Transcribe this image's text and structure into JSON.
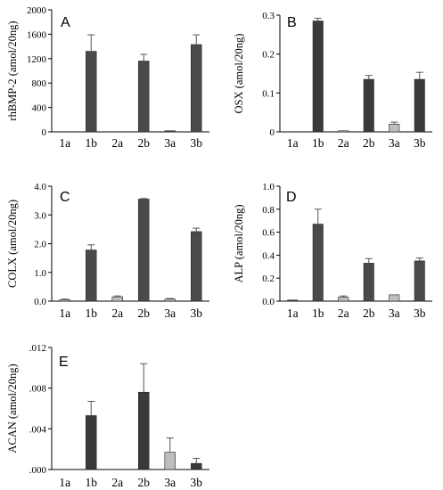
{
  "chart_data": [
    {
      "type": "bar",
      "panel": "A",
      "ylabel": "rhBMP-2 (amol/20ng)",
      "categories": [
        "1a",
        "1b",
        "2a",
        "2b",
        "3a",
        "3b"
      ],
      "values": [
        0,
        1320,
        0,
        1160,
        8,
        1430
      ],
      "errors": [
        0,
        270,
        0,
        110,
        0,
        160
      ],
      "bar_colors": [
        "#4a4a4a",
        "#4a4a4a",
        "#4a4a4a",
        "#4a4a4a",
        "#4a4a4a",
        "#4a4a4a"
      ],
      "ylim": [
        0,
        2000
      ],
      "yticks": [
        0,
        400,
        800,
        1200,
        1600,
        2000
      ],
      "ytick_labels": [
        "0",
        "400",
        "800",
        "1200",
        "1600",
        "2000"
      ]
    },
    {
      "type": "bar",
      "panel": "B",
      "ylabel": "OSX (amol/20ng)",
      "categories": [
        "1a",
        "1b",
        "2a",
        "2b",
        "3a",
        "3b"
      ],
      "values": [
        0,
        0.285,
        0.002,
        0.135,
        0.02,
        0.135
      ],
      "errors": [
        0,
        0.007,
        0,
        0.01,
        0.005,
        0.018
      ],
      "bar_colors": [
        "#3a3a3a",
        "#3a3a3a",
        "#bdbdbd",
        "#3a3a3a",
        "#bdbdbd",
        "#3a3a3a"
      ],
      "ylim": [
        0,
        0.3
      ],
      "yticks": [
        0,
        0.1,
        0.2,
        0.3
      ],
      "ytick_labels": [
        "0",
        "0.1",
        "0.2",
        "0.3"
      ]
    },
    {
      "type": "bar",
      "panel": "C",
      "ylabel": "COLX (amol/20ng)",
      "categories": [
        "1a",
        "1b",
        "2a",
        "2b",
        "3a",
        "3b"
      ],
      "values": [
        0.05,
        1.78,
        0.15,
        3.55,
        0.07,
        2.42
      ],
      "errors": [
        0.02,
        0.18,
        0.03,
        0.02,
        0.02,
        0.12
      ],
      "bar_colors": [
        "#bdbdbd",
        "#4a4a4a",
        "#bdbdbd",
        "#4a4a4a",
        "#bdbdbd",
        "#4a4a4a"
      ],
      "ylim": [
        0,
        4.0
      ],
      "yticks": [
        0,
        1,
        2,
        3,
        4
      ],
      "ytick_labels": [
        "0.0",
        "1.0",
        "2.0",
        "3.0",
        "4.0"
      ]
    },
    {
      "type": "bar",
      "panel": "D",
      "ylabel": "ALP (amol/20ng)",
      "categories": [
        "1a",
        "1b",
        "2a",
        "2b",
        "3a",
        "3b"
      ],
      "values": [
        0.005,
        0.67,
        0.035,
        0.33,
        0.055,
        0.35
      ],
      "errors": [
        0,
        0.13,
        0.01,
        0.04,
        0,
        0.025
      ],
      "bar_colors": [
        "#4a4a4a",
        "#4a4a4a",
        "#bdbdbd",
        "#4a4a4a",
        "#bdbdbd",
        "#4a4a4a"
      ],
      "ylim": [
        0,
        1.0
      ],
      "yticks": [
        0,
        0.2,
        0.4,
        0.6,
        0.8,
        1.0
      ],
      "ytick_labels": [
        "0.0",
        "0.2",
        "0.4",
        "0.6",
        "0.8",
        "1.0"
      ]
    },
    {
      "type": "bar",
      "panel": "E",
      "ylabel": "ACAN (amol/20ng)",
      "categories": [
        "1a",
        "1b",
        "2a",
        "2b",
        "3a",
        "3b"
      ],
      "values": [
        0,
        0.0053,
        0,
        0.0076,
        0.0017,
        0.0006
      ],
      "errors": [
        0,
        0.0014,
        0,
        0.0028,
        0.0014,
        0.0005
      ],
      "bar_colors": [
        "#3a3a3a",
        "#3a3a3a",
        "#3a3a3a",
        "#3a3a3a",
        "#bdbdbd",
        "#3a3a3a"
      ],
      "ylim": [
        0,
        0.012
      ],
      "yticks": [
        0,
        0.004,
        0.008,
        0.012
      ],
      "ytick_labels": [
        ".000",
        ".004",
        ".008",
        ".012"
      ]
    }
  ]
}
